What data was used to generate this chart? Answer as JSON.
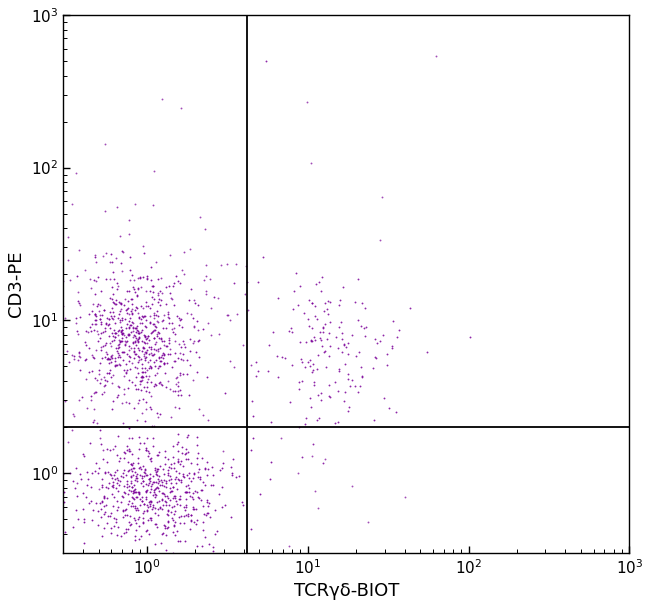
{
  "xlabel": "TCRγδ-BIOT",
  "ylabel": "CD3-PE",
  "dot_color": "#7B0099",
  "xlim": [
    0.3,
    1000
  ],
  "ylim": [
    0.3,
    1000
  ],
  "gate_x": 4.2,
  "gate_y": 2.0,
  "figsize": [
    6.5,
    6.07
  ],
  "dpi": 100,
  "seed": 42,
  "bg_color": "#ffffff"
}
